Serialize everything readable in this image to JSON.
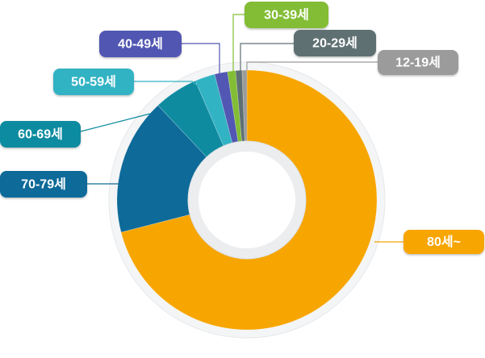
{
  "chart_data": {
    "type": "pie",
    "variant": "donut",
    "title": "",
    "legend": "none",
    "grid": false,
    "slices": [
      {
        "label": "80세~",
        "value": 71.0,
        "color": "#f7a500"
      },
      {
        "label": "70-79세",
        "value": 17.0,
        "color": "#0d6a99"
      },
      {
        "label": "60-69세",
        "value": 5.5,
        "color": "#0f8ba0"
      },
      {
        "label": "50-59세",
        "value": 2.5,
        "color": "#32b3c4"
      },
      {
        "label": "40-49세",
        "value": 1.6,
        "color": "#5157b2"
      },
      {
        "label": "30-39세",
        "value": 1.0,
        "color": "#82bd35"
      },
      {
        "label": "20-29세",
        "value": 0.8,
        "color": "#5e6f72"
      },
      {
        "label": "12-19세",
        "value": 0.6,
        "color": "#9b9b9b"
      }
    ]
  }
}
